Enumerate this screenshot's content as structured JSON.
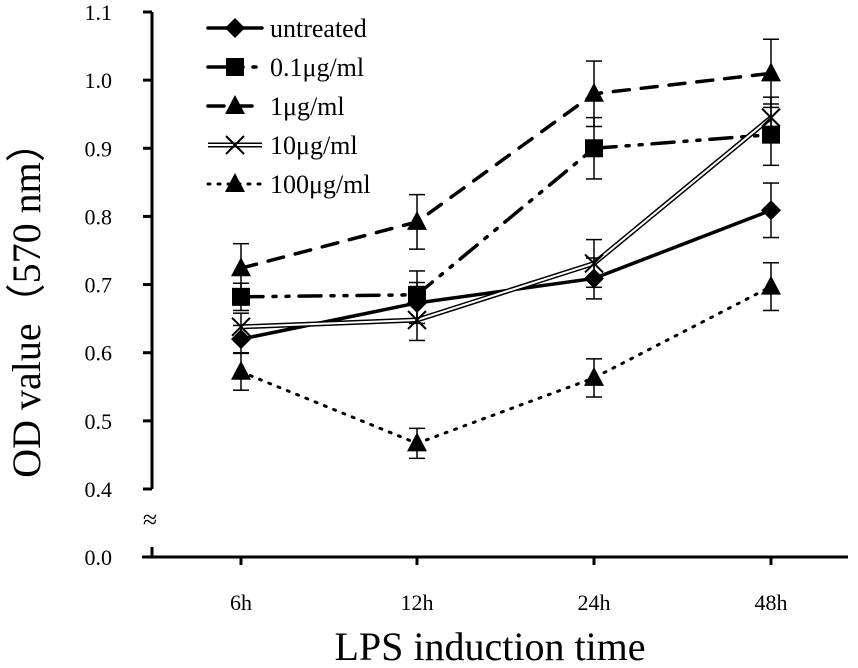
{
  "chart_data": {
    "type": "line",
    "title": "",
    "xlabel": "LPS induction time",
    "ylabel": "OD value（570 nm）",
    "categories": [
      "6h",
      "12h",
      "24h",
      "48h"
    ],
    "y_ticks": [
      "0.0",
      "0.4",
      "0.5",
      "0.6",
      "0.7",
      "0.8",
      "0.9",
      "1.0",
      "1.1"
    ],
    "y_tick_values": [
      0.0,
      0.4,
      0.5,
      0.6,
      0.7,
      0.8,
      0.9,
      1.0,
      1.1
    ],
    "ylim": [
      0.4,
      1.1
    ],
    "axis_break": {
      "from": 0.0,
      "to": 0.4,
      "symbol": "≈"
    },
    "grid": false,
    "legend_position": "top-left",
    "series": [
      {
        "name": "untreated",
        "marker": "diamond",
        "line_style": "solid-thick",
        "values": [
          0.62,
          0.673,
          0.709,
          0.809
        ],
        "errors": [
          0.02,
          0.03,
          0.03,
          0.04
        ]
      },
      {
        "name": "0.1μg/ml",
        "marker": "square",
        "line_style": "dash-dot-dot",
        "values": [
          0.682,
          0.685,
          0.9,
          0.92
        ],
        "errors": [
          0.02,
          0.035,
          0.045,
          0.045
        ]
      },
      {
        "name": "1μg/ml",
        "marker": "triangle",
        "line_style": "dashed",
        "values": [
          0.724,
          0.792,
          0.98,
          1.01
        ],
        "errors": [
          0.036,
          0.04,
          0.048,
          0.05
        ]
      },
      {
        "name": "10μg/ml",
        "marker": "x",
        "line_style": "double",
        "values": [
          0.638,
          0.648,
          0.731,
          0.945
        ],
        "errors": [
          0.02,
          0.03,
          0.035,
          0.03
        ]
      },
      {
        "name": "100μg/ml",
        "marker": "triangle",
        "line_style": "dotted",
        "values": [
          0.572,
          0.467,
          0.563,
          0.697
        ],
        "errors": [
          0.027,
          0.022,
          0.028,
          0.035
        ]
      }
    ],
    "colors": {
      "ink": "#000000",
      "background": "#ffffff"
    }
  }
}
